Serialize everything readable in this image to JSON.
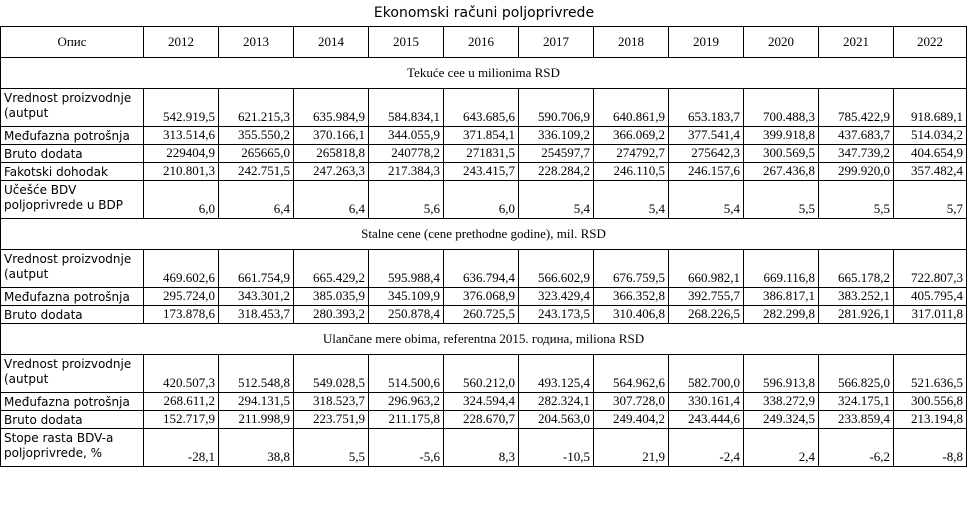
{
  "title": "Ekonomski računi poljoprivrede",
  "header": {
    "label": "Опис",
    "years": [
      "2012",
      "2013",
      "2014",
      "2015",
      "2016",
      "2017",
      "2018",
      "2019",
      "2020",
      "2021",
      "2022"
    ]
  },
  "sections": [
    {
      "title": "Tekuće cee u milionima RSD",
      "rows": [
        {
          "label": "Vrednost proizvodnje (autput",
          "tall": true,
          "values": [
            "542.919,5",
            "621.215,3",
            "635.984,9",
            "584.834,1",
            "643.685,6",
            "590.706,9",
            "640.861,9",
            "653.183,7",
            "700.488,3",
            "785.422,9",
            "918.689,1"
          ]
        },
        {
          "label": "Međufazna potrošnja",
          "tall": false,
          "values": [
            "313.514,6",
            "355.550,2",
            "370.166,1",
            "344.055,9",
            "371.854,1",
            "336.109,2",
            "366.069,2",
            "377.541,4",
            "399.918,8",
            "437.683,7",
            "514.034,2"
          ]
        },
        {
          "label": "Bruto dodata",
          "tall": false,
          "values": [
            "229404,9",
            "265665,0",
            "265818,8",
            "240778,2",
            "271831,5",
            "254597,7",
            "274792,7",
            "275642,3",
            "300.569,5",
            "347.739,2",
            "404.654,9"
          ]
        },
        {
          "label": "Fakotski dohodak",
          "tall": false,
          "values": [
            "210.801,3",
            "242.751,5",
            "247.263,3",
            "217.384,3",
            "243.415,7",
            "228.284,2",
            "246.110,5",
            "246.157,6",
            "267.436,8",
            "299.920,0",
            "357.482,4"
          ]
        },
        {
          "label": "Učešće BDV poljoprivrede u BDP",
          "tall": true,
          "values": [
            "6,0",
            "6,4",
            "6,4",
            "5,6",
            "6,0",
            "5,4",
            "5,4",
            "5,4",
            "5,5",
            "5,5",
            "5,7"
          ]
        }
      ]
    },
    {
      "title": "Stalne cene (cene prethodne godine), mil. RSD",
      "rows": [
        {
          "label": "Vrednost proizvodnje (autput",
          "tall": true,
          "values": [
            "469.602,6",
            "661.754,9",
            "665.429,2",
            "595.988,4",
            "636.794,4",
            "566.602,9",
            "676.759,5",
            "660.982,1",
            "669.116,8",
            "665.178,2",
            "722.807,3"
          ]
        },
        {
          "label": "Međufazna potrošnja",
          "tall": false,
          "values": [
            "295.724,0",
            "343.301,2",
            "385.035,9",
            "345.109,9",
            "376.068,9",
            "323.429,4",
            "366.352,8",
            "392.755,7",
            "386.817,1",
            "383.252,1",
            "405.795,4"
          ]
        },
        {
          "label": "Bruto dodata",
          "tall": false,
          "values": [
            "173.878,6",
            "318.453,7",
            "280.393,2",
            "250.878,4",
            "260.725,5",
            "243.173,5",
            "310.406,8",
            "268.226,5",
            "282.299,8",
            "281.926,1",
            "317.011,8"
          ]
        }
      ]
    },
    {
      "title": "Ulančane mere obima, referentna 2015. година, miliona RSD",
      "rows": [
        {
          "label": "Vrednost proizvodnje (autput",
          "tall": true,
          "values": [
            "420.507,3",
            "512.548,8",
            "549.028,5",
            "514.500,6",
            "560.212,0",
            "493.125,4",
            "564.962,6",
            "582.700,0",
            "596.913,8",
            "566.825,0",
            "521.636,5"
          ]
        },
        {
          "label": "Međufazna potrošnja",
          "tall": false,
          "values": [
            "268.611,2",
            "294.131,5",
            "318.523,7",
            "296.963,2",
            "324.594,4",
            "282.324,1",
            "307.728,0",
            "330.161,4",
            "338.272,9",
            "324.175,1",
            "300.556,8"
          ]
        },
        {
          "label": "Bruto dodata",
          "tall": false,
          "values": [
            "152.717,9",
            "211.998,9",
            "223.751,9",
            "211.175,8",
            "228.670,7",
            "204.563,0",
            "249.404,2",
            "243.444,6",
            "249.324,5",
            "233.859,4",
            "213.194,8"
          ]
        },
        {
          "label": "Stope rasta BDV-a poljoprivrede, %",
          "tall": true,
          "values": [
            "-28,1",
            "38,8",
            "5,5",
            "-5,6",
            "8,3",
            "-10,5",
            "21,9",
            "-2,4",
            "2,4",
            "-6,2",
            "-8,8"
          ]
        }
      ]
    }
  ]
}
